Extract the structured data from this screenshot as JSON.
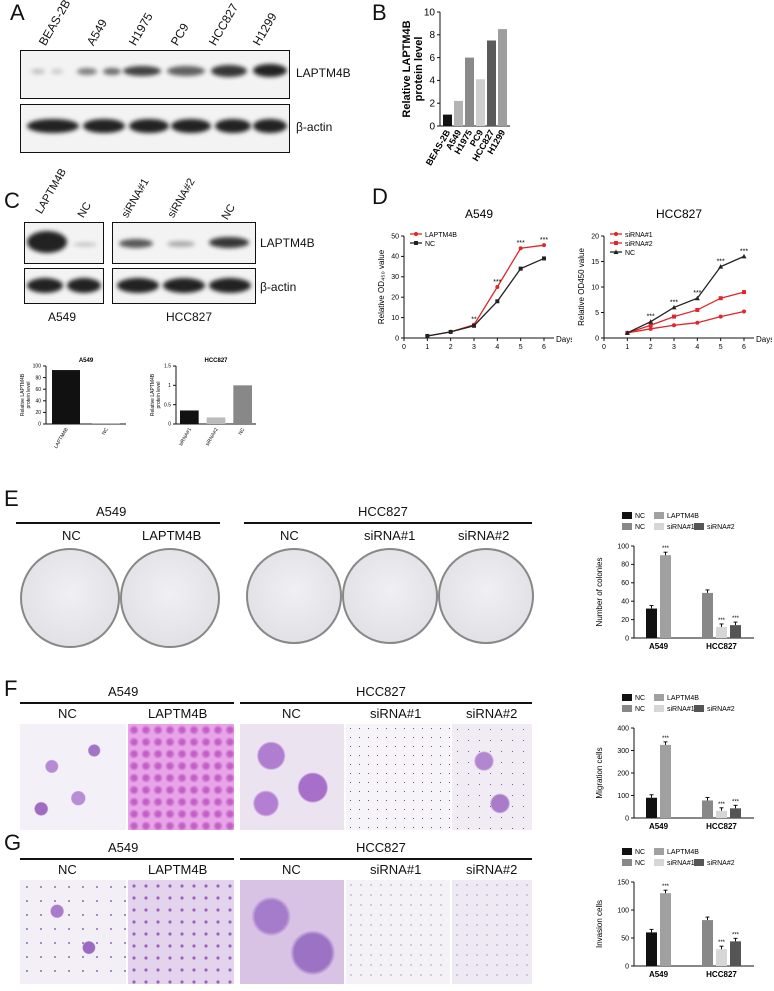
{
  "panels": {
    "A": "A",
    "B": "B",
    "C": "C",
    "D": "D",
    "E": "E",
    "F": "F",
    "G": "G"
  },
  "panelA": {
    "lanes": [
      "BEAS-2B",
      "A549",
      "H1975",
      "PC9",
      "HCC827",
      "H1299"
    ],
    "rows": [
      "LAPTM4B",
      "β-actin"
    ]
  },
  "panelB": {
    "chart_data": {
      "type": "bar",
      "categories": [
        "BEAS-2B",
        "A549",
        "H1975",
        "PC9",
        "HCC827",
        "H1299"
      ],
      "values": [
        1.0,
        2.2,
        6.0,
        4.1,
        7.5,
        8.5
      ],
      "ylabel": "Relative LAPTM4B protein level",
      "ylim": [
        0,
        10
      ],
      "colors": [
        "#111111",
        "#b3b3b3",
        "#8a8a8a",
        "#cfcfcf",
        "#5a5a5a",
        "#9e9e9e"
      ]
    }
  },
  "panelC": {
    "left_lanes": [
      "LAPTM4B",
      "NC"
    ],
    "right_lanes": [
      "siRNA#1",
      "siRNA#2",
      "NC"
    ],
    "rows": [
      "LAPTM4B",
      "β-actin"
    ],
    "left_cell": "A549",
    "right_cell": "HCC827",
    "chart_a549": {
      "type": "bar",
      "title": "A549",
      "categories": [
        "LAPTM4B",
        "NC"
      ],
      "values": [
        93,
        1
      ],
      "ylabel": "Relative LAPTM4B protein level",
      "ylim": [
        0,
        100
      ],
      "colors": [
        "#111111",
        "#888888"
      ]
    },
    "chart_hcc827": {
      "type": "bar",
      "title": "HCC827",
      "categories": [
        "siRNA#1",
        "siRNA#2",
        "NC"
      ],
      "values": [
        0.35,
        0.17,
        1.0
      ],
      "ylabel": "Relative LAPTM4B protein level",
      "ylim": [
        0,
        1.5
      ],
      "colors": [
        "#111111",
        "#bbbbbb",
        "#888888"
      ]
    }
  },
  "panelD": {
    "chart_a549": {
      "type": "line",
      "title": "A549",
      "x": [
        1,
        2,
        3,
        4,
        5,
        6
      ],
      "xlabel": "Days",
      "ylabel": "Relative OD₄₅₀ value",
      "ylim": [
        0,
        50
      ],
      "series": [
        {
          "name": "LAPTM4B",
          "values": [
            1,
            3,
            6.5,
            25,
            44,
            45.5
          ],
          "color": "#e0262a",
          "marker": "circle"
        },
        {
          "name": "NC",
          "values": [
            1,
            3,
            6,
            18,
            34,
            39
          ],
          "color": "#222222",
          "marker": "square"
        }
      ],
      "annotations": [
        {
          "x": 3,
          "text": "**"
        },
        {
          "x": 4,
          "text": "***"
        },
        {
          "x": 5,
          "text": "***"
        },
        {
          "x": 6,
          "text": "***"
        }
      ]
    },
    "chart_hcc827": {
      "type": "line",
      "title": "HCC827",
      "x": [
        1,
        2,
        3,
        4,
        5,
        6
      ],
      "xlabel": "Days",
      "ylabel": "Relative OD450 value",
      "ylim": [
        0,
        20
      ],
      "series": [
        {
          "name": "siRNA#1",
          "values": [
            1,
            1.8,
            2.5,
            3,
            4.2,
            5.2
          ],
          "color": "#e0262a",
          "marker": "circle"
        },
        {
          "name": "siRNA#2",
          "values": [
            1,
            2.5,
            4.2,
            5.5,
            7.8,
            9
          ],
          "color": "#e0262a",
          "marker": "square"
        },
        {
          "name": "NC",
          "values": [
            1,
            3.2,
            6,
            7.8,
            14,
            16
          ],
          "color": "#222222",
          "marker": "triangle"
        }
      ],
      "annotations": [
        {
          "x": 2,
          "text": "***"
        },
        {
          "x": 3,
          "text": "***"
        },
        {
          "x": 4,
          "text": "***"
        },
        {
          "x": 5,
          "text": "***"
        },
        {
          "x": 6,
          "text": "***"
        }
      ]
    }
  },
  "panelE": {
    "group_a549": "A549",
    "group_hcc827": "HCC827",
    "dish_labels": [
      "NC",
      "LAPTM4B",
      "NC",
      "siRNA#1",
      "siRNA#2"
    ],
    "chart_data": {
      "type": "bar",
      "ylabel": "Number of colonies",
      "ylim": [
        0,
        100
      ],
      "groups": [
        "A549",
        "HCC827"
      ],
      "series": [
        {
          "name": "NC",
          "values": [
            32,
            null
          ],
          "color": "#111111"
        },
        {
          "name": "LAPTM4B",
          "values": [
            90,
            null
          ],
          "color": "#a0a0a0"
        },
        {
          "name": "NC",
          "values": [
            null,
            49
          ],
          "color": "#888888"
        },
        {
          "name": "siRNA#1",
          "values": [
            null,
            12
          ],
          "color": "#d6d6d6"
        },
        {
          "name": "siRNA#2",
          "values": [
            null,
            14
          ],
          "color": "#555555"
        }
      ],
      "sig": "***"
    }
  },
  "panelF": {
    "group_a549": "A549",
    "group_hcc827": "HCC827",
    "image_labels": [
      "NC",
      "LAPTM4B",
      "NC",
      "siRNA#1",
      "siRNA#2"
    ],
    "chart_data": {
      "type": "bar",
      "ylabel": "Migration cells",
      "ylim": [
        0,
        400
      ],
      "groups": [
        "A549",
        "HCC827"
      ],
      "series": [
        {
          "name": "NC",
          "values": [
            90,
            null
          ],
          "color": "#111111"
        },
        {
          "name": "LAPTM4B",
          "values": [
            325,
            null
          ],
          "color": "#a0a0a0"
        },
        {
          "name": "NC",
          "values": [
            null,
            78
          ],
          "color": "#888888"
        },
        {
          "name": "siRNA#1",
          "values": [
            null,
            32
          ],
          "color": "#d6d6d6"
        },
        {
          "name": "siRNA#2",
          "values": [
            null,
            43
          ],
          "color": "#555555"
        }
      ],
      "sig": "***"
    }
  },
  "panelG": {
    "group_a549": "A549",
    "group_hcc827": "HCC827",
    "image_labels": [
      "NC",
      "LAPTM4B",
      "NC",
      "siRNA#1",
      "siRNA#2"
    ],
    "chart_data": {
      "type": "bar",
      "ylabel": "Invasion cells",
      "ylim": [
        0,
        150
      ],
      "groups": [
        "A549",
        "HCC827"
      ],
      "series": [
        {
          "name": "NC",
          "values": [
            60,
            null
          ],
          "color": "#111111"
        },
        {
          "name": "LAPTM4B",
          "values": [
            130,
            null
          ],
          "color": "#a0a0a0"
        },
        {
          "name": "NC",
          "values": [
            null,
            82
          ],
          "color": "#888888"
        },
        {
          "name": "siRNA#1",
          "values": [
            null,
            30
          ],
          "color": "#d6d6d6"
        },
        {
          "name": "siRNA#2",
          "values": [
            null,
            44
          ],
          "color": "#555555"
        }
      ],
      "sig": "***"
    }
  }
}
